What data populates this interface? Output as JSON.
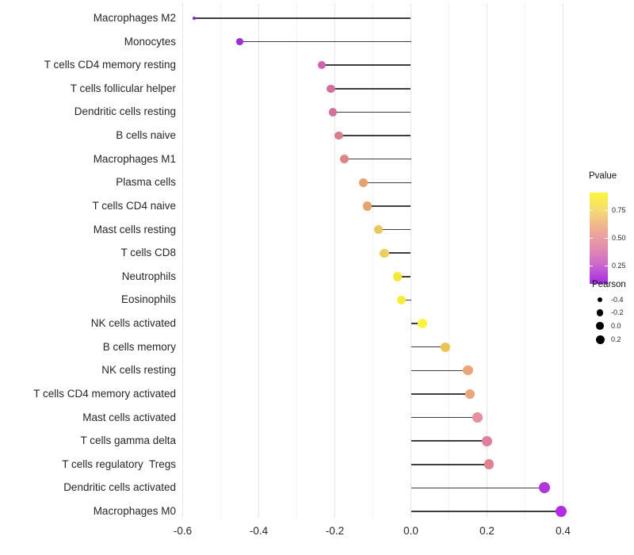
{
  "chart_data": {
    "type": "scatter",
    "style": "lollipop",
    "title": "",
    "xlabel": "",
    "ylabel": "",
    "xlim": [
      -0.66,
      0.47
    ],
    "grid": "vertical-only",
    "x_ticks": [
      -0.6,
      -0.4,
      -0.2,
      0.0,
      0.2,
      0.4
    ],
    "x_tick_labels": [
      "-0.6",
      "-0.4",
      "-0.2",
      "0.0",
      "0.2",
      "0.4"
    ],
    "x_minor_ticks": [
      -0.5,
      -0.3,
      -0.1,
      0.1,
      0.3
    ],
    "rows": [
      {
        "label": "Macrophages M2",
        "pearson": -0.57,
        "color": "#7b2bd1",
        "r": 2.3
      },
      {
        "label": "Monocytes",
        "pearson": -0.45,
        "color": "#9c30d8",
        "r": 4.3
      },
      {
        "label": "T cells CD4 memory resting",
        "pearson": -0.235,
        "color": "#cd63af",
        "r": 5.2
      },
      {
        "label": "T cells follicular helper",
        "pearson": -0.21,
        "color": "#d1709e",
        "r": 5.3
      },
      {
        "label": "Dendritic cells resting",
        "pearson": -0.205,
        "color": "#d2729c",
        "r": 5.3
      },
      {
        "label": "B cells naive",
        "pearson": -0.19,
        "color": "#d87e93",
        "r": 5.4
      },
      {
        "label": "Macrophages M1",
        "pearson": -0.175,
        "color": "#dc8585",
        "r": 5.5
      },
      {
        "label": "Plasma cells",
        "pearson": -0.125,
        "color": "#e6a16d",
        "r": 5.6
      },
      {
        "label": "T cells CD4 naive",
        "pearson": -0.115,
        "color": "#e6a36b",
        "r": 5.6
      },
      {
        "label": "Mast cells resting",
        "pearson": -0.085,
        "color": "#ebc75f",
        "r": 5.7
      },
      {
        "label": "T cells CD8",
        "pearson": -0.07,
        "color": "#edce5e",
        "r": 5.7
      },
      {
        "label": "Neutrophils",
        "pearson": -0.035,
        "color": "#f5e83a",
        "r": 5.8
      },
      {
        "label": "Eosinophils",
        "pearson": -0.025,
        "color": "#f8ec3b",
        "r": 5.8
      },
      {
        "label": "NK cells activated",
        "pearson": 0.03,
        "color": "#fbf23c",
        "r": 5.9
      },
      {
        "label": "B cells memory",
        "pearson": 0.09,
        "color": "#ecc455",
        "r": 6.1
      },
      {
        "label": "NK cells resting",
        "pearson": 0.15,
        "color": "#eba57b",
        "r": 6.2
      },
      {
        "label": "T cells CD4 memory activated",
        "pearson": 0.155,
        "color": "#eba57b",
        "r": 6.2
      },
      {
        "label": "Mast cells activated",
        "pearson": 0.175,
        "color": "#e5909a",
        "r": 6.3
      },
      {
        "label": "T cells gamma delta",
        "pearson": 0.2,
        "color": "#de809b",
        "r": 6.4
      },
      {
        "label": "T cells regulatory  Tregs",
        "pearson": 0.205,
        "color": "#e08290",
        "r": 6.4
      },
      {
        "label": "Dendritic cells activated",
        "pearson": 0.35,
        "color": "#ae36da",
        "r": 7.0
      },
      {
        "label": "Macrophages M0",
        "pearson": 0.395,
        "color": "#b22ce1",
        "r": 7.3
      }
    ],
    "legend_pvalue": {
      "title": "Pvalue",
      "labels": [
        "0.75",
        "0.50",
        "0.25"
      ],
      "gradient": [
        "#fcf63d",
        "#f5d974",
        "#eeae94",
        "#e38eae",
        "#cb65cf",
        "#a32be4"
      ],
      "position": "right"
    },
    "legend_pearson": {
      "title": "Pearson",
      "dot_color": "#000000",
      "items": [
        {
          "label": "-0.4",
          "r": 3.2
        },
        {
          "label": "-0.2",
          "r": 4.1
        },
        {
          "label": "0.0",
          "r": 4.9
        },
        {
          "label": "0.2",
          "r": 5.5
        }
      ]
    },
    "colors": {
      "segment": "#3d3d3d",
      "grid_major": "#e4e4e4",
      "grid_minor": "#f1f1f1",
      "axis_text": "#262626",
      "background": "#ffffff"
    }
  }
}
